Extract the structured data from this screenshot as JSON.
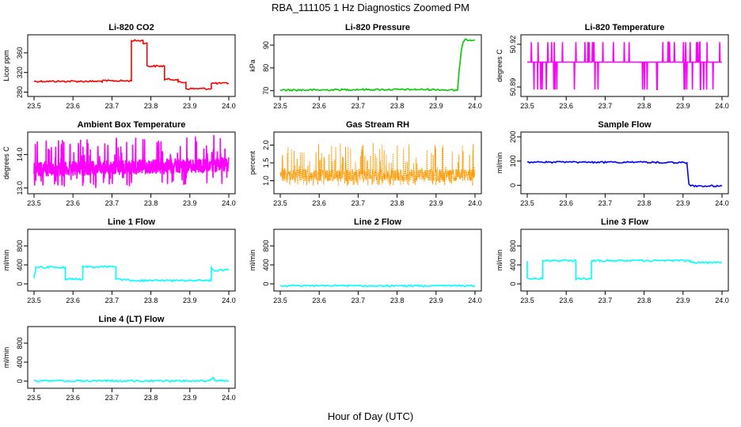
{
  "title": "RBA_111105  1 Hz Diagnostics Zoomed PM",
  "xlabel": "Hour of Day (UTC)",
  "chart_data": [
    {
      "type": "line",
      "title": "Li-820 CO2",
      "ylabel": "Licor ppm",
      "color": "#ff0000",
      "xlim": [
        23.5,
        24.0
      ],
      "xticks": [
        "23.5",
        "23.6",
        "23.7",
        "23.8",
        "23.9",
        "24.0"
      ],
      "ylim": [
        276,
        392
      ],
      "yticks": [
        "280",
        "320",
        "360"
      ],
      "series": [
        {
          "x": [
            23.5,
            23.675,
            23.675,
            23.75,
            23.75,
            23.78,
            23.78,
            23.79,
            23.79,
            23.835,
            23.835,
            23.87,
            23.87,
            23.89,
            23.89,
            23.955,
            23.955,
            24.0
          ],
          "y": [
            302,
            302,
            303,
            303,
            385,
            385,
            380,
            380,
            333,
            333,
            306,
            306,
            300,
            300,
            287,
            287,
            298,
            298
          ]
        }
      ]
    },
    {
      "type": "line",
      "title": "Li-820 Pressure",
      "ylabel": "kPa",
      "color": "#00cc00",
      "xlim": [
        23.5,
        24.0
      ],
      "xticks": [
        "23.5",
        "23.6",
        "23.7",
        "23.8",
        "23.9",
        "24.0"
      ],
      "ylim": [
        68.5,
        93.5
      ],
      "yticks": [
        "70",
        "80",
        "90"
      ],
      "series": [
        {
          "x": [
            23.5,
            23.6,
            23.7,
            23.8,
            23.9,
            23.94,
            23.955,
            23.96,
            23.965,
            23.97,
            23.975,
            24.0
          ],
          "y": [
            70.3,
            70.3,
            70.5,
            70.5,
            70.5,
            70.2,
            70.2,
            80,
            88,
            91.5,
            92.3,
            92.3
          ]
        }
      ]
    },
    {
      "type": "line",
      "title": "Li-820 Temperature",
      "ylabel": "degrees C",
      "color": "#ff00ff",
      "xlim": [
        23.5,
        24.0
      ],
      "xticks": [
        "23.5",
        "23.6",
        "23.7",
        "23.8",
        "23.9",
        "24.0"
      ],
      "ylim": [
        50.885,
        50.925
      ],
      "yticks": [
        "50.89",
        "50.92"
      ],
      "series": [
        {
          "x": [],
          "y": []
        }
      ]
    },
    {
      "type": "line",
      "title": "Ambient Box Temperature",
      "ylabel": "degrees C",
      "color": "#ff00ff",
      "xlim": [
        23.5,
        24.0
      ],
      "xticks": [
        "23.5",
        "23.6",
        "23.7",
        "23.8",
        "23.9",
        "24.0"
      ],
      "ylim": [
        12.9,
        14.6
      ],
      "yticks": [
        "13.0",
        "14.0"
      ],
      "series": [
        {
          "x": [],
          "y": []
        }
      ]
    },
    {
      "type": "line",
      "title": "Gas Stream RH",
      "ylabel": "percent",
      "color": "#ff9900",
      "xlim": [
        23.5,
        24.0
      ],
      "xticks": [
        "23.5",
        "23.6",
        "23.7",
        "23.8",
        "23.9",
        "24.0"
      ],
      "ylim": [
        0.7,
        2.3
      ],
      "yticks": [
        "1.0",
        "1.5",
        "2.0"
      ],
      "series": [
        {
          "x": [],
          "y": []
        }
      ]
    },
    {
      "type": "line",
      "title": "Sample Flow",
      "ylabel": "ml/min",
      "color": "#0000ff",
      "xlim": [
        23.5,
        24.0
      ],
      "xticks": [
        "23.5",
        "23.6",
        "23.7",
        "23.8",
        "23.9",
        "24.0"
      ],
      "ylim": [
        -25,
        210
      ],
      "yticks": [
        "0",
        "100",
        "200"
      ],
      "series": [
        {
          "x": [
            23.5,
            23.6,
            23.7,
            23.8,
            23.91,
            23.915,
            23.92,
            24.0
          ],
          "y": [
            95,
            95,
            95,
            95,
            93,
            5,
            -3,
            -3
          ]
        }
      ]
    },
    {
      "type": "line",
      "title": "Line 1 Flow",
      "ylabel": "ml/min",
      "color": "#00ffff",
      "xlim": [
        23.5,
        24.0
      ],
      "xticks": [
        "23.5",
        "23.6",
        "23.7",
        "23.8",
        "23.9",
        "24.0"
      ],
      "ylim": [
        -100,
        1100
      ],
      "yticks": [
        "0",
        "400",
        "800"
      ],
      "series": [
        {
          "x": [
            23.5,
            23.505,
            23.58,
            23.58,
            23.625,
            23.625,
            23.71,
            23.71,
            23.755,
            23.955,
            23.955,
            23.96,
            24.0
          ],
          "y": [
            120,
            350,
            350,
            100,
            100,
            360,
            360,
            100,
            70,
            70,
            350,
            280,
            300
          ]
        }
      ]
    },
    {
      "type": "line",
      "title": "Line 2 Flow",
      "ylabel": "ml/min",
      "color": "#00ffff",
      "xlim": [
        23.5,
        24.0
      ],
      "xticks": [
        "23.5",
        "23.6",
        "23.7",
        "23.8",
        "23.9",
        "24.0"
      ],
      "ylim": [
        -100,
        1100
      ],
      "yticks": [
        "0",
        "400",
        "800"
      ],
      "series": [
        {
          "x": [
            23.5,
            24.0
          ],
          "y": [
            -40,
            -40
          ]
        }
      ]
    },
    {
      "type": "line",
      "title": "Line 3 Flow",
      "ylabel": "ml/min",
      "color": "#00ffff",
      "xlim": [
        23.5,
        24.0
      ],
      "xticks": [
        "23.5",
        "23.6",
        "23.7",
        "23.8",
        "23.9",
        "24.0"
      ],
      "ylim": [
        -100,
        1100
      ],
      "yticks": [
        "0",
        "400",
        "800"
      ],
      "series": [
        {
          "x": [
            23.5,
            23.5,
            23.5,
            23.54,
            23.54,
            23.625,
            23.625,
            23.665,
            23.665,
            23.92,
            23.92,
            24.0
          ],
          "y": [
            480,
            300,
            110,
            110,
            490,
            490,
            110,
            110,
            490,
            490,
            450,
            450
          ]
        }
      ]
    },
    {
      "type": "line",
      "title": "Line 4 (LT) Flow",
      "ylabel": "ml/min",
      "color": "#00ffff",
      "xlim": [
        23.5,
        24.0
      ],
      "xticks": [
        "23.5",
        "23.6",
        "23.7",
        "23.8",
        "23.9",
        "24.0"
      ],
      "ylim": [
        -100,
        1100
      ],
      "yticks": [
        "0",
        "400",
        "800"
      ],
      "series": [
        {
          "x": [
            23.5,
            23.95,
            23.955,
            23.96,
            23.965,
            24.0
          ],
          "y": [
            5,
            5,
            30,
            80,
            10,
            10
          ]
        }
      ]
    }
  ]
}
